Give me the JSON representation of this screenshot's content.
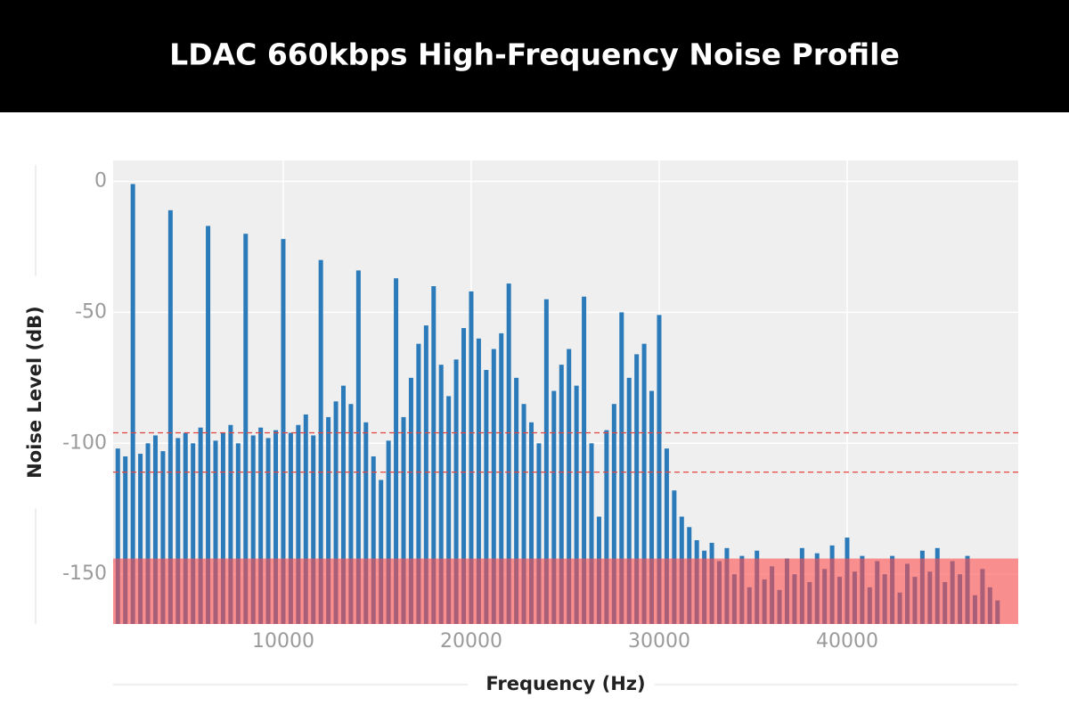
{
  "chart_data": {
    "type": "bar",
    "title": "LDAC 660kbps High-Frequency Noise Profile",
    "x_label": "Frequency (Hz)",
    "y_label": "Noise Level (dB)",
    "color": "#2b7bba",
    "x": [
      1200,
      1600,
      2000,
      2400,
      2800,
      3200,
      3600,
      4000,
      4400,
      4800,
      5200,
      5600,
      6000,
      6400,
      6800,
      7200,
      7600,
      8000,
      8400,
      8800,
      9200,
      9600,
      10000,
      10400,
      10800,
      11200,
      11600,
      12000,
      12400,
      12800,
      13200,
      13600,
      14000,
      14400,
      14800,
      15200,
      15600,
      16000,
      16400,
      16800,
      17200,
      17600,
      18000,
      18400,
      18800,
      19200,
      19600,
      20000,
      20400,
      20800,
      21200,
      21600,
      22000,
      22400,
      22800,
      23200,
      23600,
      24000,
      24400,
      24800,
      25200,
      25600,
      26000,
      26400,
      26800,
      27200,
      27600,
      28000,
      28400,
      28800,
      29200,
      29600,
      30000,
      30400,
      30800,
      31200,
      31600,
      32000,
      32400,
      32800,
      33200,
      33600,
      34000,
      34400,
      34800,
      35200,
      35600,
      36000,
      36400,
      36800,
      37200,
      37600,
      38000,
      38400,
      38800,
      39200,
      39600,
      40000,
      40400,
      40800,
      41200,
      41600,
      42000,
      42400,
      42800,
      43200,
      43600,
      44000,
      44400,
      44800,
      45200,
      45600,
      46000,
      46400,
      46800,
      47200,
      47600,
      48000
    ],
    "values": [
      -102,
      -105,
      -1,
      -104,
      -100,
      -97,
      -103,
      -11,
      -98,
      -96,
      -100,
      -94,
      -17,
      -99,
      -96,
      -93,
      -100,
      -20,
      -97,
      -94,
      -98,
      -95,
      -22,
      -96,
      -93,
      -89,
      -97,
      -30,
      -90,
      -84,
      -78,
      -85,
      -34,
      -92,
      -105,
      -114,
      -99,
      -37,
      -90,
      -75,
      -62,
      -55,
      -40,
      -70,
      -82,
      -68,
      -56,
      -42,
      -60,
      -72,
      -64,
      -58,
      -39,
      -75,
      -85,
      -92,
      -100,
      -45,
      -80,
      -70,
      -64,
      -78,
      -44,
      -100,
      -128,
      -95,
      -85,
      -50,
      -75,
      -66,
      -62,
      -80,
      -51,
      -102,
      -118,
      -128,
      -132,
      -137,
      -141,
      -138,
      -145,
      -140,
      -150,
      -143,
      -155,
      -141,
      -152,
      -147,
      -156,
      -144,
      -150,
      -140,
      -153,
      -142,
      -148,
      -139,
      -151,
      -136,
      -149,
      -143,
      -155,
      -145,
      -150,
      -143,
      -157,
      -146,
      -151,
      -141,
      -149,
      -140,
      -153,
      -145,
      -150,
      -143,
      -158,
      -148,
      -155,
      -160
    ],
    "xlim": [
      950,
      49100
    ],
    "ylim": [
      -169,
      8
    ],
    "xticks": [
      10000,
      20000,
      30000,
      40000
    ],
    "yticks": [
      0,
      -50,
      -100,
      -150
    ],
    "grid": true,
    "reference_lines": [
      -96,
      -111
    ],
    "reference_color": "#e0463f",
    "floor_band": -144,
    "floor_band_color": "#ff4d4d"
  }
}
